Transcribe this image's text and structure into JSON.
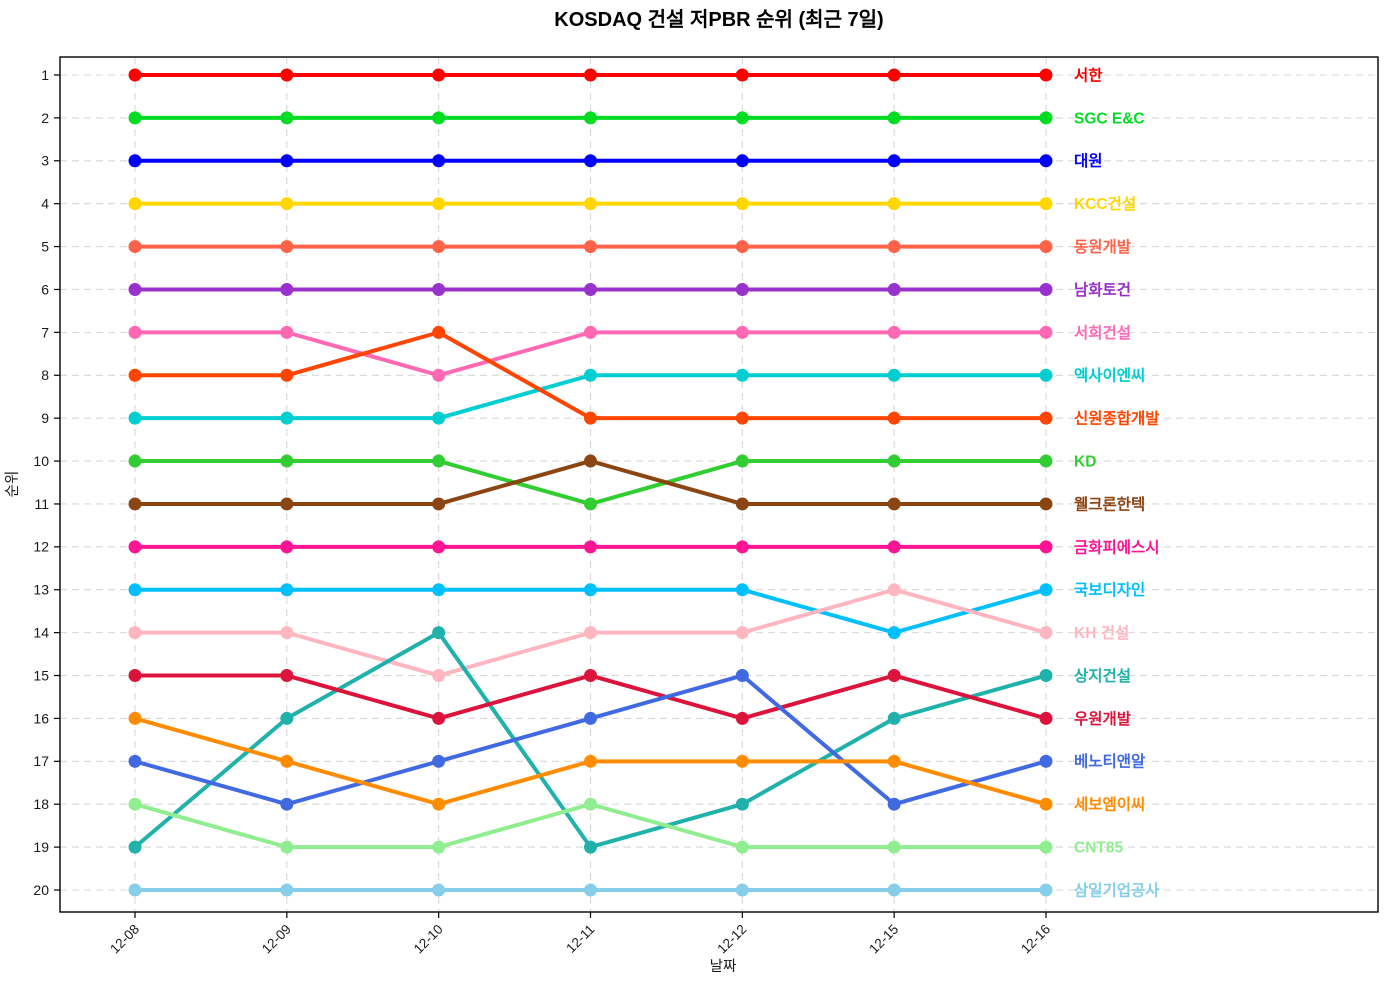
{
  "page": {
    "background_color": "#ffffff"
  },
  "chart_data": {
    "type": "line",
    "variant": "rank-bump",
    "title": "KOSDAQ 건설 저PBR 순위 (최근 7일)",
    "xlabel": "날짜",
    "ylabel": "순위",
    "x": [
      "12-08",
      "12-09",
      "12-10",
      "12-11",
      "12-12",
      "12-15",
      "12-16"
    ],
    "yticks": [
      1,
      2,
      3,
      4,
      5,
      6,
      7,
      8,
      9,
      10,
      11,
      12,
      13,
      14,
      15,
      16,
      17,
      18,
      19,
      20
    ],
    "y_axis_inverted": true,
    "ylim": [
      1,
      20
    ],
    "grid": {
      "horizontal": true,
      "vertical": true,
      "style": "dashed",
      "color": "#d8d8d8"
    },
    "legend_position": "labels-right-of-last-point",
    "series": [
      {
        "name": "서한",
        "color": "#ff0000",
        "ranks": [
          1,
          1,
          1,
          1,
          1,
          1,
          1
        ]
      },
      {
        "name": "SGC E&C",
        "color": "#00dd22",
        "ranks": [
          2,
          2,
          2,
          2,
          2,
          2,
          2
        ]
      },
      {
        "name": "대원",
        "color": "#0000ff",
        "ranks": [
          3,
          3,
          3,
          3,
          3,
          3,
          3
        ]
      },
      {
        "name": "KCC건설",
        "color": "#ffd700",
        "ranks": [
          4,
          4,
          4,
          4,
          4,
          4,
          4
        ]
      },
      {
        "name": "동원개발",
        "color": "#ff6347",
        "ranks": [
          5,
          5,
          5,
          5,
          5,
          5,
          5
        ]
      },
      {
        "name": "남화토건",
        "color": "#9932cc",
        "ranks": [
          6,
          6,
          6,
          6,
          6,
          6,
          6
        ]
      },
      {
        "name": "서희건설",
        "color": "#ff69b4",
        "ranks": [
          7,
          7,
          8,
          7,
          7,
          7,
          7
        ]
      },
      {
        "name": "엑사이엔씨",
        "color": "#00ced1",
        "ranks": [
          9,
          9,
          9,
          8,
          8,
          8,
          8
        ]
      },
      {
        "name": "신원종합개발",
        "color": "#ff4500",
        "ranks": [
          8,
          8,
          7,
          9,
          9,
          9,
          9
        ]
      },
      {
        "name": "KD",
        "color": "#32cd32",
        "ranks": [
          10,
          10,
          10,
          11,
          10,
          10,
          10
        ]
      },
      {
        "name": "웰크론한텍",
        "color": "#8b4513",
        "ranks": [
          11,
          11,
          11,
          10,
          11,
          11,
          11
        ]
      },
      {
        "name": "금화피에스시",
        "color": "#ff1493",
        "ranks": [
          12,
          12,
          12,
          12,
          12,
          12,
          12
        ]
      },
      {
        "name": "국보디자인",
        "color": "#00bfff",
        "ranks": [
          13,
          13,
          13,
          13,
          13,
          14,
          13
        ]
      },
      {
        "name": "KH 건설",
        "color": "#ffb6c1",
        "ranks": [
          14,
          14,
          15,
          14,
          14,
          13,
          14
        ]
      },
      {
        "name": "상지건설",
        "color": "#20b2aa",
        "ranks": [
          19,
          16,
          14,
          19,
          18,
          16,
          15
        ]
      },
      {
        "name": "우원개발",
        "color": "#dc143c",
        "ranks": [
          15,
          15,
          16,
          15,
          16,
          15,
          16
        ]
      },
      {
        "name": "베노티앤알",
        "color": "#4169e1",
        "ranks": [
          17,
          18,
          17,
          16,
          15,
          18,
          17
        ]
      },
      {
        "name": "세보엠이씨",
        "color": "#ff8c00",
        "ranks": [
          16,
          17,
          18,
          17,
          17,
          17,
          18
        ]
      },
      {
        "name": "CNT85",
        "color": "#90ee90",
        "ranks": [
          18,
          19,
          19,
          18,
          19,
          19,
          19
        ]
      },
      {
        "name": "삼일기업공사",
        "color": "#87ceeb",
        "ranks": [
          20,
          20,
          20,
          20,
          20,
          20,
          20
        ]
      }
    ]
  }
}
